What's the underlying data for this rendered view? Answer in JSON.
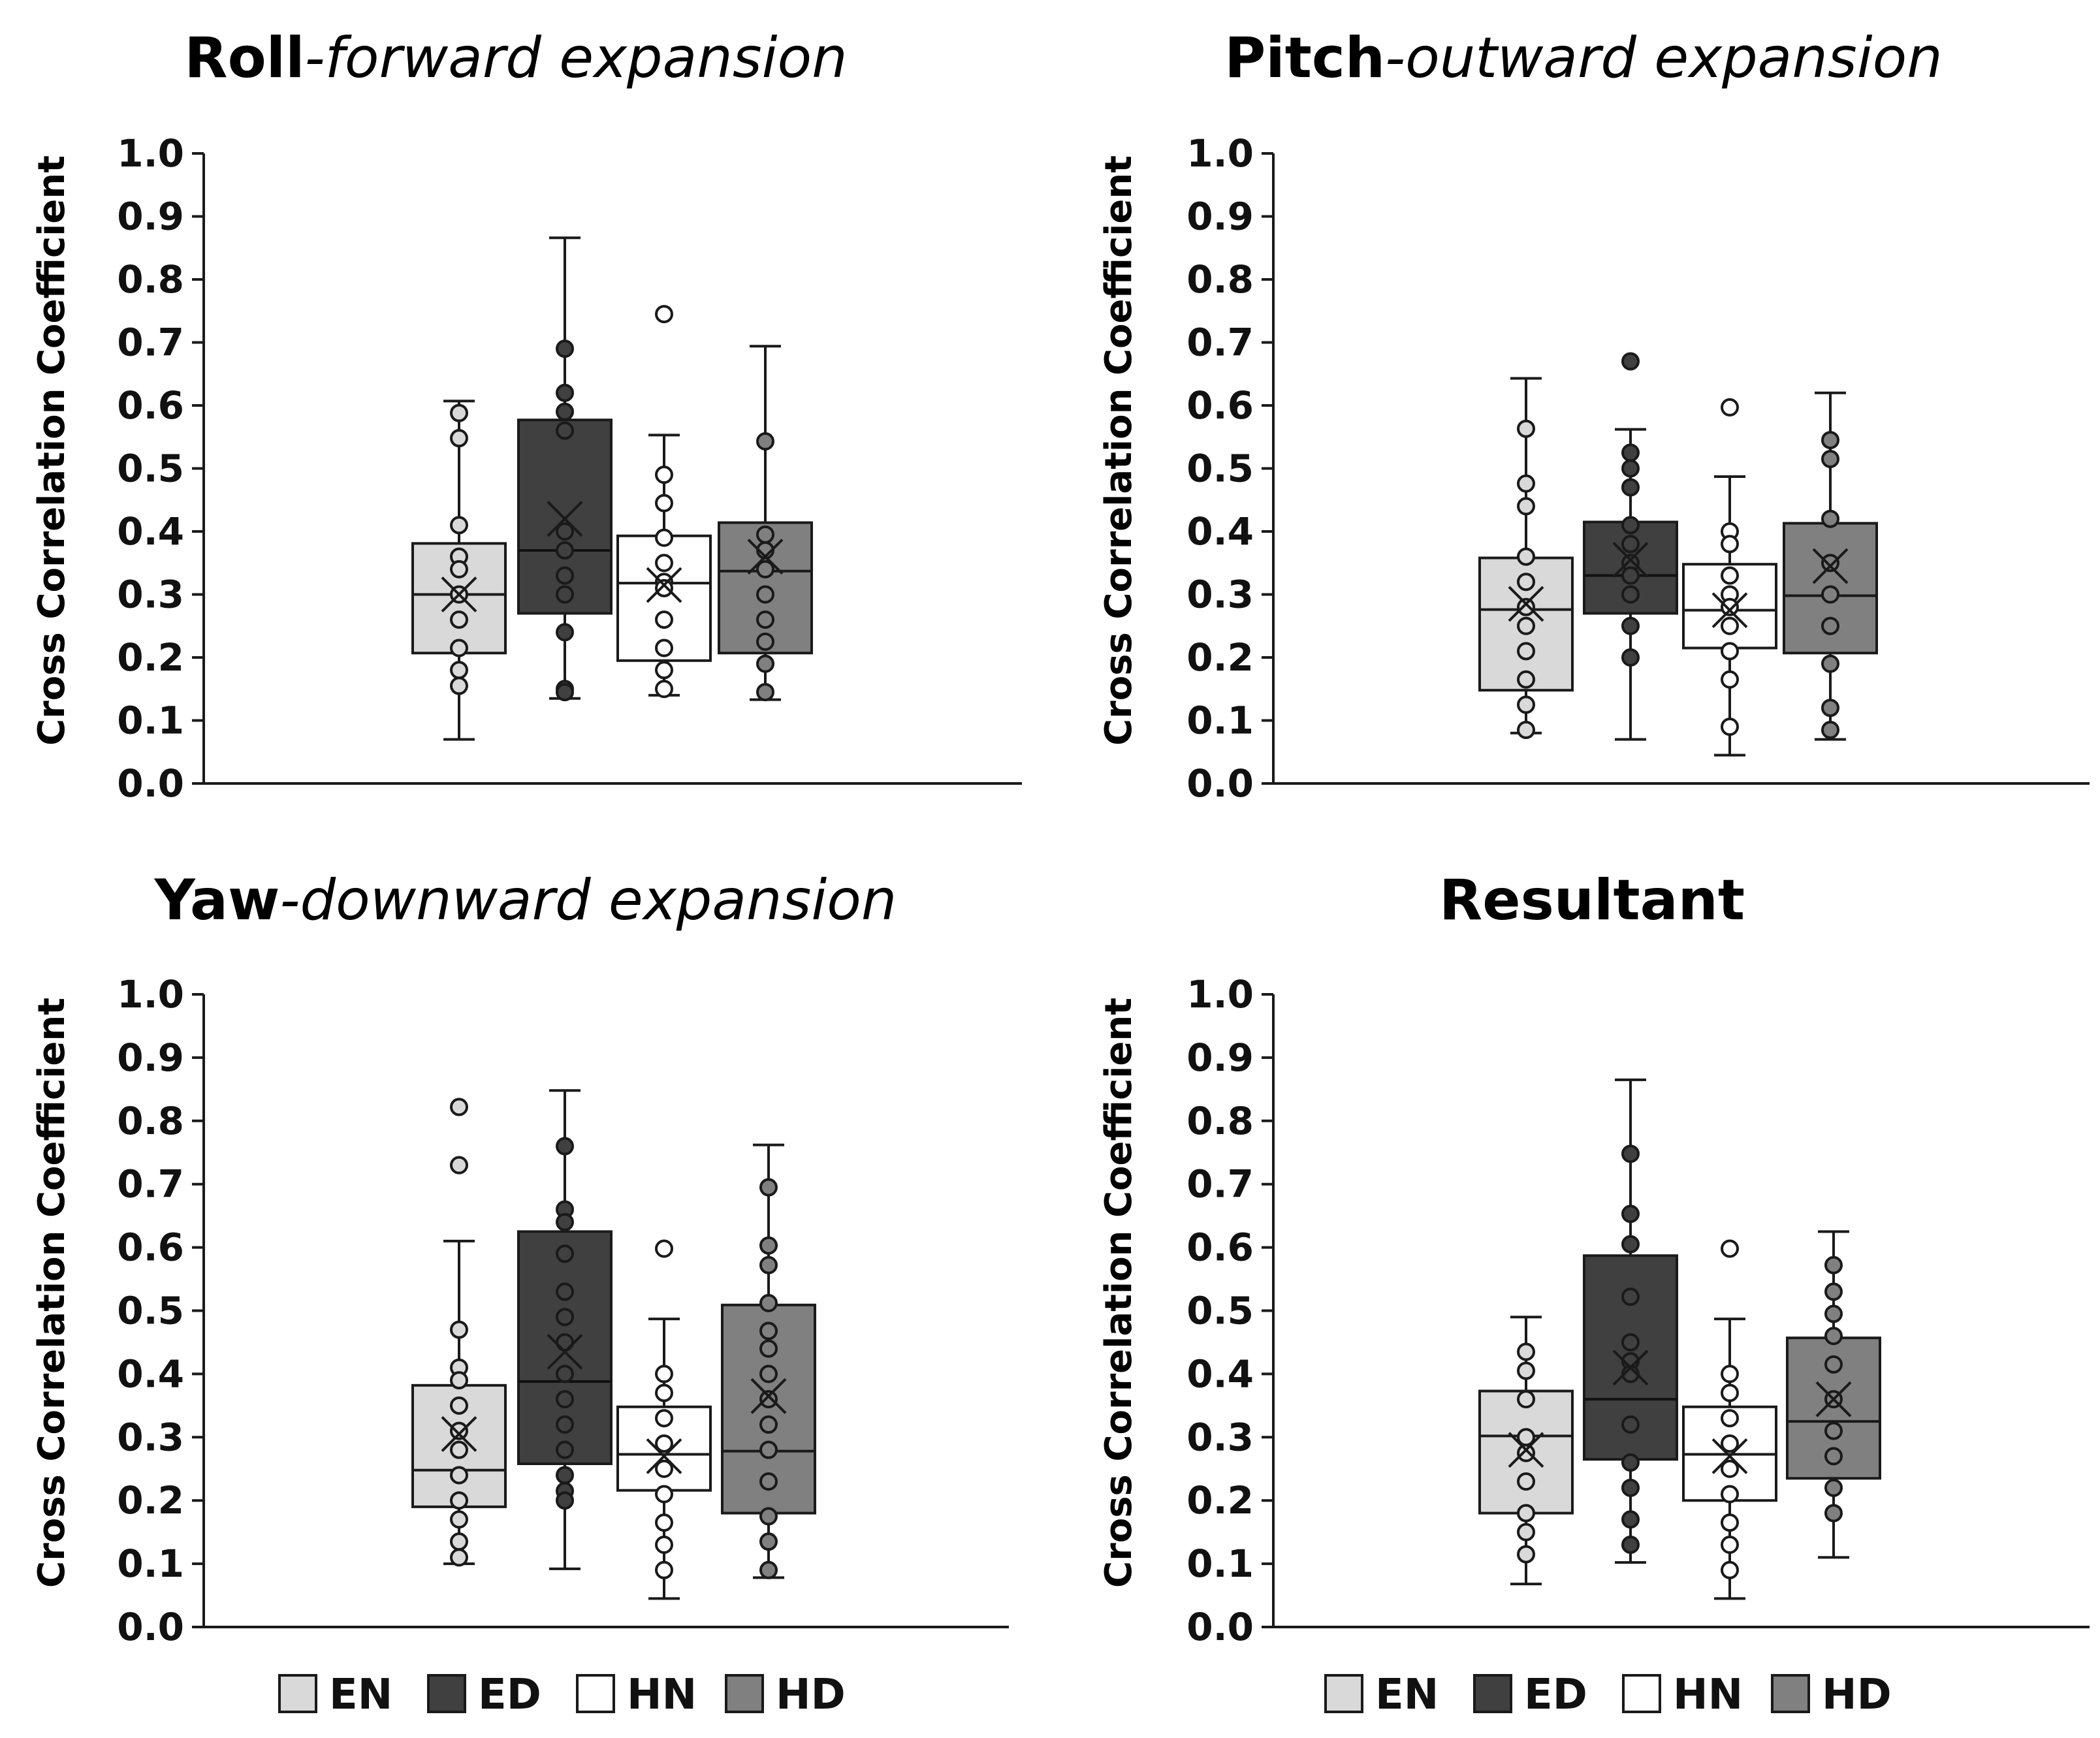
{
  "chart_data": [
    {
      "type": "box",
      "title_main": "Roll",
      "title_sub": "-forward expansion",
      "ylabel": "Cross Correlation Coefficient",
      "ylim": [
        0.0,
        1.0
      ],
      "yticks": [
        "0.0",
        "0.1",
        "0.2",
        "0.3",
        "0.4",
        "0.5",
        "0.6",
        "0.7",
        "0.8",
        "0.9",
        "1.0"
      ],
      "groups": [
        {
          "name": "EN",
          "q1": 0.207,
          "median": 0.3,
          "q3": 0.381,
          "whisker_low": 0.07,
          "whisker_high": 0.607,
          "mean": 0.3,
          "points": [
            0.548,
            0.588,
            0.41,
            0.36,
            0.34,
            0.3,
            0.26,
            0.215,
            0.18,
            0.155
          ],
          "outliers": []
        },
        {
          "name": "ED",
          "q1": 0.27,
          "median": 0.37,
          "q3": 0.577,
          "whisker_low": 0.135,
          "whisker_high": 0.866,
          "mean": 0.42,
          "points": [
            0.69,
            0.62,
            0.59,
            0.56,
            0.4,
            0.37,
            0.33,
            0.3,
            0.24,
            0.15,
            0.145
          ],
          "outliers": []
        },
        {
          "name": "HN",
          "q1": 0.195,
          "median": 0.318,
          "q3": 0.393,
          "whisker_low": 0.14,
          "whisker_high": 0.553,
          "mean": 0.315,
          "points": [
            0.49,
            0.445,
            0.39,
            0.35,
            0.32,
            0.31,
            0.26,
            0.215,
            0.18,
            0.15
          ],
          "outliers": [
            0.745
          ]
        },
        {
          "name": "HD",
          "q1": 0.207,
          "median": 0.337,
          "q3": 0.414,
          "whisker_low": 0.133,
          "whisker_high": 0.694,
          "mean": 0.36,
          "points": [
            0.543,
            0.395,
            0.37,
            0.34,
            0.3,
            0.26,
            0.225,
            0.19,
            0.145
          ],
          "outliers": []
        }
      ]
    },
    {
      "type": "box",
      "title_main": "Pitch",
      "title_sub": "-outward expansion",
      "ylabel": "Cross Correlation Coefficient",
      "ylim": [
        0.0,
        1.0
      ],
      "yticks": [
        "0.0",
        "0.1",
        "0.2",
        "0.3",
        "0.4",
        "0.5",
        "0.6",
        "0.7",
        "0.8",
        "0.9",
        "1.0"
      ],
      "groups": [
        {
          "name": "EN",
          "q1": 0.148,
          "median": 0.276,
          "q3": 0.358,
          "whisker_low": 0.08,
          "whisker_high": 0.643,
          "mean": 0.285,
          "points": [
            0.563,
            0.476,
            0.44,
            0.36,
            0.32,
            0.28,
            0.25,
            0.21,
            0.165,
            0.125,
            0.085
          ],
          "outliers": []
        },
        {
          "name": "ED",
          "q1": 0.27,
          "median": 0.33,
          "q3": 0.415,
          "whisker_low": 0.07,
          "whisker_high": 0.562,
          "mean": 0.355,
          "points": [
            0.525,
            0.5,
            0.47,
            0.41,
            0.38,
            0.35,
            0.33,
            0.3,
            0.25,
            0.2
          ],
          "outliers": [
            0.67
          ]
        },
        {
          "name": "HN",
          "q1": 0.215,
          "median": 0.275,
          "q3": 0.348,
          "whisker_low": 0.045,
          "whisker_high": 0.487,
          "mean": 0.275,
          "points": [
            0.4,
            0.38,
            0.33,
            0.3,
            0.28,
            0.25,
            0.21,
            0.165,
            0.09
          ],
          "outliers": [
            0.597
          ]
        },
        {
          "name": "HD",
          "q1": 0.207,
          "median": 0.298,
          "q3": 0.413,
          "whisker_low": 0.07,
          "whisker_high": 0.62,
          "mean": 0.345,
          "points": [
            0.545,
            0.515,
            0.42,
            0.35,
            0.3,
            0.25,
            0.19,
            0.12,
            0.085
          ],
          "outliers": []
        }
      ]
    },
    {
      "type": "box",
      "title_main": "Yaw",
      "title_sub": "-downward expansion",
      "ylabel": "Cross Correlation Coefficient",
      "ylim": [
        0.0,
        1.0
      ],
      "yticks": [
        "0.0",
        "0.1",
        "0.2",
        "0.3",
        "0.4",
        "0.5",
        "0.6",
        "0.7",
        "0.8",
        "0.9",
        "1.0"
      ],
      "groups": [
        {
          "name": "EN",
          "q1": 0.19,
          "median": 0.248,
          "q3": 0.382,
          "whisker_low": 0.1,
          "whisker_high": 0.61,
          "mean": 0.305,
          "points": [
            0.47,
            0.41,
            0.39,
            0.35,
            0.31,
            0.28,
            0.24,
            0.2,
            0.17,
            0.135,
            0.11
          ],
          "outliers": [
            0.822,
            0.73
          ]
        },
        {
          "name": "ED",
          "q1": 0.258,
          "median": 0.388,
          "q3": 0.625,
          "whisker_low": 0.092,
          "whisker_high": 0.848,
          "mean": 0.435,
          "points": [
            0.76,
            0.66,
            0.64,
            0.59,
            0.53,
            0.49,
            0.45,
            0.4,
            0.36,
            0.32,
            0.28,
            0.24,
            0.215,
            0.2
          ],
          "outliers": []
        },
        {
          "name": "HN",
          "q1": 0.216,
          "median": 0.273,
          "q3": 0.348,
          "whisker_low": 0.045,
          "whisker_high": 0.487,
          "mean": 0.27,
          "points": [
            0.4,
            0.37,
            0.33,
            0.29,
            0.25,
            0.21,
            0.165,
            0.13,
            0.09
          ],
          "outliers": [
            0.598
          ]
        },
        {
          "name": "HD",
          "q1": 0.18,
          "median": 0.278,
          "q3": 0.509,
          "whisker_low": 0.078,
          "whisker_high": 0.762,
          "mean": 0.365,
          "points": [
            0.695,
            0.603,
            0.572,
            0.512,
            0.468,
            0.44,
            0.4,
            0.36,
            0.32,
            0.28,
            0.23,
            0.175,
            0.135,
            0.09
          ],
          "outliers": []
        }
      ]
    },
    {
      "type": "box",
      "title_main": "Resultant",
      "title_sub": "",
      "ylabel": "Cross Correlation Coefficient",
      "ylim": [
        0.0,
        1.0
      ],
      "yticks": [
        "0.0",
        "0.1",
        "0.2",
        "0.3",
        "0.4",
        "0.5",
        "0.6",
        "0.7",
        "0.8",
        "0.9",
        "1.0"
      ],
      "groups": [
        {
          "name": "EN",
          "q1": 0.18,
          "median": 0.302,
          "q3": 0.373,
          "whisker_low": 0.068,
          "whisker_high": 0.49,
          "mean": 0.28,
          "points": [
            0.435,
            0.405,
            0.36,
            0.3,
            0.275,
            0.23,
            0.18,
            0.15,
            0.115
          ],
          "outliers": []
        },
        {
          "name": "ED",
          "q1": 0.265,
          "median": 0.36,
          "q3": 0.587,
          "whisker_low": 0.102,
          "whisker_high": 0.865,
          "mean": 0.41,
          "points": [
            0.748,
            0.653,
            0.605,
            0.522,
            0.45,
            0.42,
            0.4,
            0.32,
            0.26,
            0.22,
            0.17,
            0.13
          ],
          "outliers": []
        },
        {
          "name": "HN",
          "q1": 0.2,
          "median": 0.273,
          "q3": 0.348,
          "whisker_low": 0.045,
          "whisker_high": 0.487,
          "mean": 0.27,
          "points": [
            0.4,
            0.37,
            0.33,
            0.29,
            0.25,
            0.21,
            0.165,
            0.13,
            0.09
          ],
          "outliers": [
            0.598
          ]
        },
        {
          "name": "HD",
          "q1": 0.235,
          "median": 0.325,
          "q3": 0.457,
          "whisker_low": 0.11,
          "whisker_high": 0.625,
          "mean": 0.36,
          "points": [
            0.572,
            0.53,
            0.495,
            0.46,
            0.415,
            0.36,
            0.31,
            0.27,
            0.22,
            0.18
          ],
          "outliers": []
        }
      ]
    }
  ],
  "legend": [
    {
      "label": "EN",
      "color": "#d9d9d9"
    },
    {
      "label": "ED",
      "color": "#404040"
    },
    {
      "label": "HN",
      "color": "#ffffff"
    },
    {
      "label": "HD",
      "color": "#808080"
    }
  ],
  "colors": {
    "EN": "#d9d9d9",
    "ED": "#404040",
    "HN": "#ffffff",
    "HD": "#808080",
    "line": "#1a1a1a"
  }
}
